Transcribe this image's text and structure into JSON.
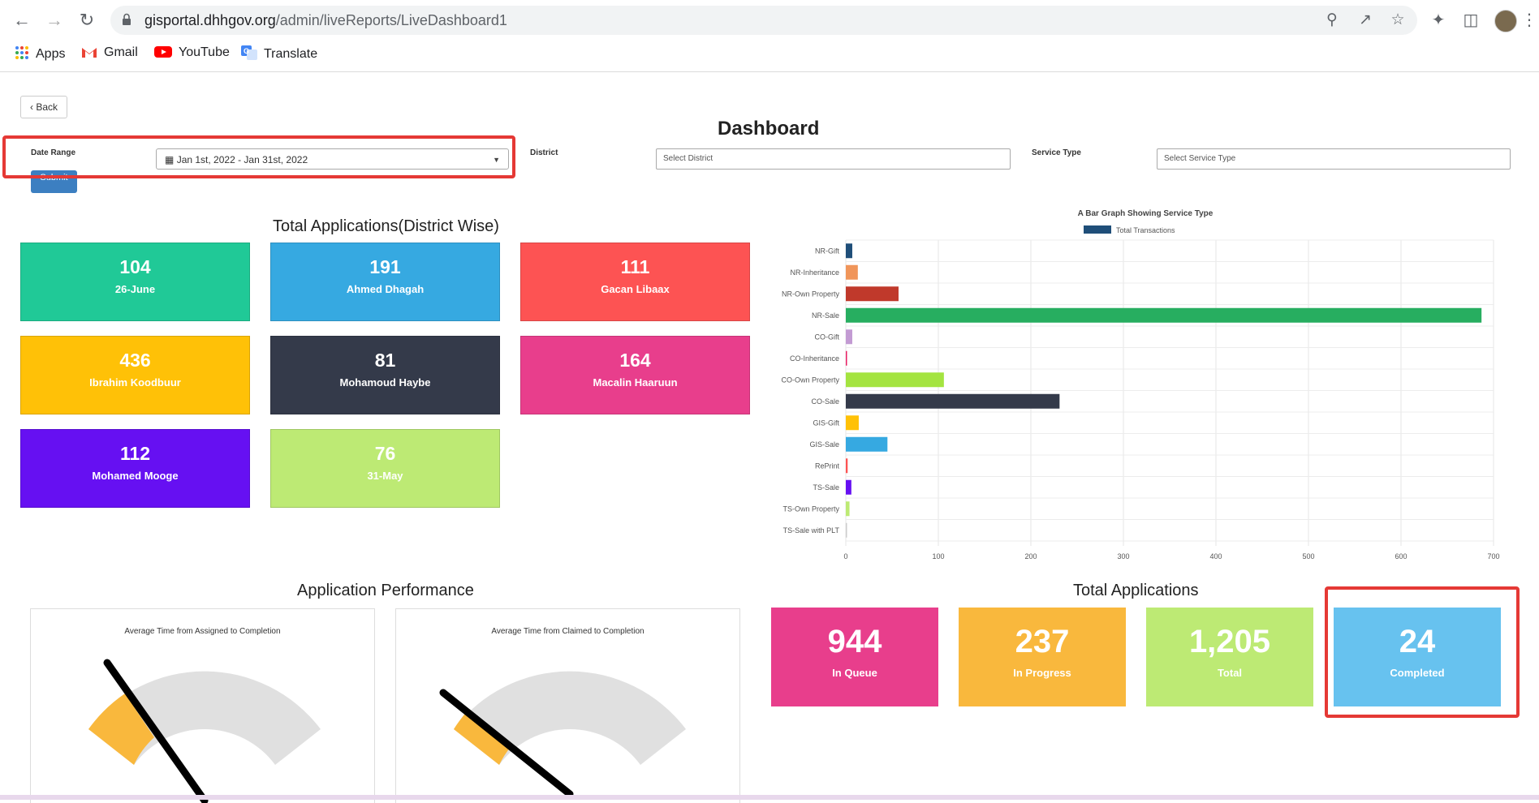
{
  "browser": {
    "url_host": "gisportal.dhhgov.org",
    "url_path": "/admin/liveReports/LiveDashboard1",
    "bookmarks": [
      "Apps",
      "Gmail",
      "YouTube",
      "Translate"
    ]
  },
  "page": {
    "back_label": "Back",
    "title": "Dashboard",
    "filters": {
      "date_range_label": "Date Range",
      "date_range_value": "Jan 1st, 2022 - Jan 31st, 2022",
      "district_label": "District",
      "district_placeholder": "Select District",
      "service_type_label": "Service Type",
      "service_type_placeholder": "Select Service Type",
      "submit_label": "Submit"
    },
    "district_section_title": "Total Applications(District Wise)",
    "district_cards": [
      {
        "value": "104",
        "name": "26-June",
        "color": "#20c997"
      },
      {
        "value": "191",
        "name": "Ahmed Dhagah",
        "color": "#36a9e1"
      },
      {
        "value": "111",
        "name": "Gacan Libaax",
        "color": "#fd5353"
      },
      {
        "value": "436",
        "name": "Ibrahim Koodbuur",
        "color": "#ffc107"
      },
      {
        "value": "81",
        "name": "Mohamoud Haybe",
        "color": "#343a4a"
      },
      {
        "value": "164",
        "name": "Macalin Haaruun",
        "color": "#e83e8c"
      },
      {
        "value": "112",
        "name": "Mohamed Mooge",
        "color": "#6610f2"
      },
      {
        "value": "76",
        "name": "31-May",
        "color": "#bdea74"
      }
    ],
    "performance_title": "Application Performance",
    "gauges": [
      {
        "title": "Average Time from Assigned to Completion"
      },
      {
        "title": "Average Time from Claimed to Completion"
      }
    ],
    "totals_title": "Total Applications",
    "status_cards": [
      {
        "value": "944",
        "label": "In Queue",
        "color": "#e83e8c"
      },
      {
        "value": "237",
        "label": "In Progress",
        "color": "#f9b83d"
      },
      {
        "value": "1,205",
        "label": "Total",
        "color": "#bdea74"
      },
      {
        "value": "24",
        "label": "Completed",
        "color": "#67c2ef"
      }
    ]
  },
  "chart_data": {
    "type": "bar",
    "orientation": "horizontal",
    "title": "A Bar Graph Showing Service Type",
    "legend": "top",
    "categories": [
      "NR-Gift",
      "NR-Inheritance",
      "NR-Own Property",
      "NR-Sale",
      "CO-Gift",
      "CO-Inheritance",
      "CO-Own Property",
      "CO-Sale",
      "GIS-Gift",
      "GIS-Sale",
      "RePrint",
      "TS-Sale",
      "TS-Own Property",
      "TS-Sale with PLT"
    ],
    "series": [
      {
        "name": "Total Transactions",
        "values": [
          7,
          13,
          57,
          687,
          7,
          1,
          106,
          231,
          14,
          45,
          2,
          6,
          4,
          1
        ]
      }
    ],
    "bar_colors": [
      "#1f4e79",
      "#f0955a",
      "#c0392b",
      "#27ae60",
      "#c39bd3",
      "#e91e63",
      "#a4e440",
      "#343a4a",
      "#ffc107",
      "#36a9e1",
      "#fd5353",
      "#6610f2",
      "#bdea74",
      "#cccccc"
    ],
    "xlim": [
      0,
      700
    ],
    "xticks": [
      "0",
      "100",
      "200",
      "300",
      "400",
      "500",
      "600",
      "700"
    ],
    "grid": true
  },
  "colors": {
    "highlight": "#e53935",
    "gauge_fill": "#f9b83d",
    "gauge_track": "#e0e0e0"
  }
}
